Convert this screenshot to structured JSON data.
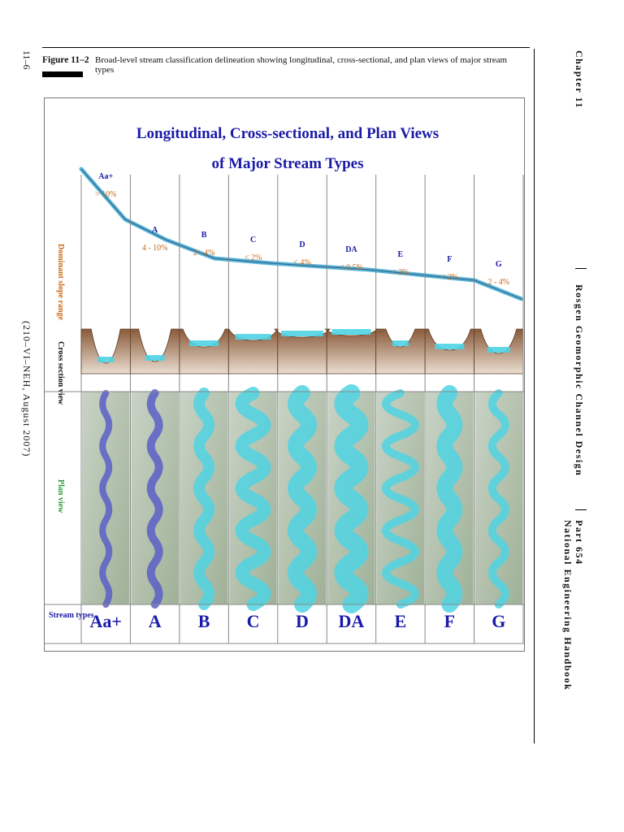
{
  "page": {
    "number": "11–6",
    "pub_code": "(210–VI–NEH, August 2007)",
    "figure_label": "Figure 11–2",
    "figure_caption": "Broad-level stream classification delineation showing longitudinal, cross-sectional, and plan views of major stream types"
  },
  "running_head": {
    "chapter": "Chapter 11",
    "title": "Rosgen Geomorphic Channel Design",
    "part": "Part 654",
    "handbook": "National Engineering Handbook"
  },
  "figure": {
    "title_line1": "Longitudinal, Cross-sectional, and Plan Views",
    "title_line2": "of Major Stream Types",
    "row_labels": {
      "slope": "Dominant slope range",
      "cross": "Cross section view",
      "plan": "Plan view",
      "types": "Stream types"
    },
    "stream_types": [
      {
        "name": "Aa+",
        "slope": "> 10%"
      },
      {
        "name": "A",
        "slope": "4 - 10%"
      },
      {
        "name": "B",
        "slope": "2 - 4%"
      },
      {
        "name": "C",
        "slope": "< 2%"
      },
      {
        "name": "D",
        "slope": "< 4%"
      },
      {
        "name": "DA",
        "slope": "< 0.5%"
      },
      {
        "name": "E",
        "slope": "< 2%"
      },
      {
        "name": "F",
        "slope": "< 2%"
      },
      {
        "name": "G",
        "slope": "2 - 4%"
      }
    ],
    "colors": {
      "title": "#1a1aa8",
      "slope_label": "#c76a1a",
      "plan_label": "#2a9a3a",
      "water": "#4fd3e3",
      "soil": "#8a5a3a"
    }
  }
}
